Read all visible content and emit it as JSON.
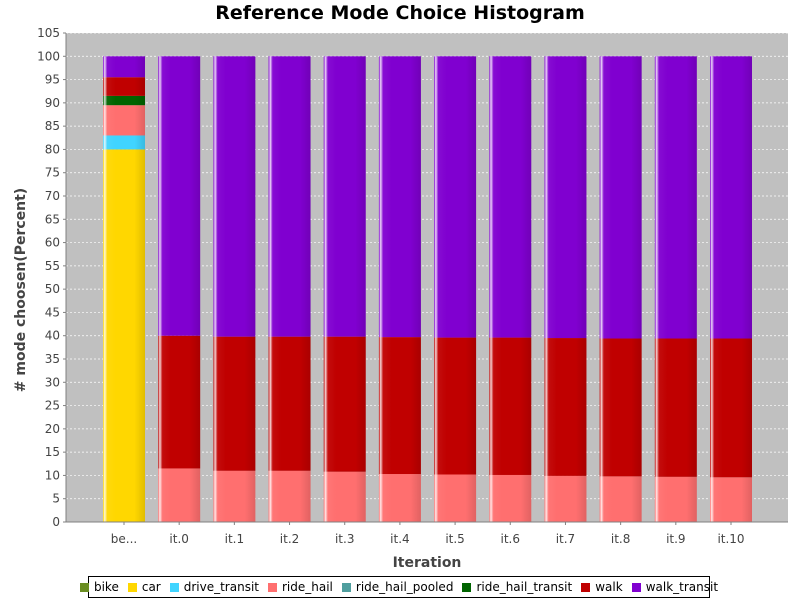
{
  "chart_data": {
    "type": "bar",
    "stacked": true,
    "title": "Reference Mode Choice Histogram",
    "xlabel": "Iteration",
    "ylabel": "# mode choosen(Percent)",
    "ylim": [
      0,
      105
    ],
    "yticks": [
      0,
      5,
      10,
      15,
      20,
      25,
      30,
      35,
      40,
      45,
      50,
      55,
      60,
      65,
      70,
      75,
      80,
      85,
      90,
      95,
      100,
      105
    ],
    "grid": true,
    "legend_position": "bottom",
    "categories": [
      "be...",
      "it.0",
      "it.1",
      "it.2",
      "it.3",
      "it.4",
      "it.5",
      "it.6",
      "it.7",
      "it.8",
      "it.9",
      "it.10"
    ],
    "series": [
      {
        "name": "bike",
        "color": "#6b8e23",
        "values": [
          0,
          0,
          0,
          0,
          0,
          0,
          0,
          0,
          0,
          0,
          0,
          0
        ]
      },
      {
        "name": "car",
        "color": "#ffd700",
        "values": [
          80,
          0,
          0,
          0,
          0,
          0,
          0,
          0,
          0,
          0,
          0,
          0
        ]
      },
      {
        "name": "drive_transit",
        "color": "#40d4ff",
        "values": [
          3,
          0,
          0,
          0,
          0,
          0,
          0,
          0,
          0,
          0,
          0,
          0
        ]
      },
      {
        "name": "ride_hail",
        "color": "#ff6f6f",
        "values": [
          6.5,
          11.5,
          11,
          11,
          10.8,
          10.3,
          10.2,
          10.1,
          9.9,
          9.8,
          9.7,
          9.6
        ]
      },
      {
        "name": "ride_hail_pooled",
        "color": "#4f9e9e",
        "values": [
          0,
          0,
          0,
          0,
          0,
          0,
          0,
          0,
          0,
          0,
          0,
          0
        ]
      },
      {
        "name": "ride_hail_transit",
        "color": "#006400",
        "values": [
          2,
          0,
          0,
          0,
          0,
          0,
          0,
          0,
          0,
          0,
          0,
          0
        ]
      },
      {
        "name": "walk",
        "color": "#c00000",
        "values": [
          4,
          28.5,
          28.8,
          28.8,
          29,
          29.4,
          29.4,
          29.5,
          29.6,
          29.6,
          29.7,
          29.8
        ]
      },
      {
        "name": "walk_transit",
        "color": "#8000d0",
        "values": [
          4.5,
          60,
          60.2,
          60.2,
          60.2,
          60.3,
          60.4,
          60.4,
          60.5,
          60.6,
          60.6,
          60.6
        ]
      }
    ]
  }
}
